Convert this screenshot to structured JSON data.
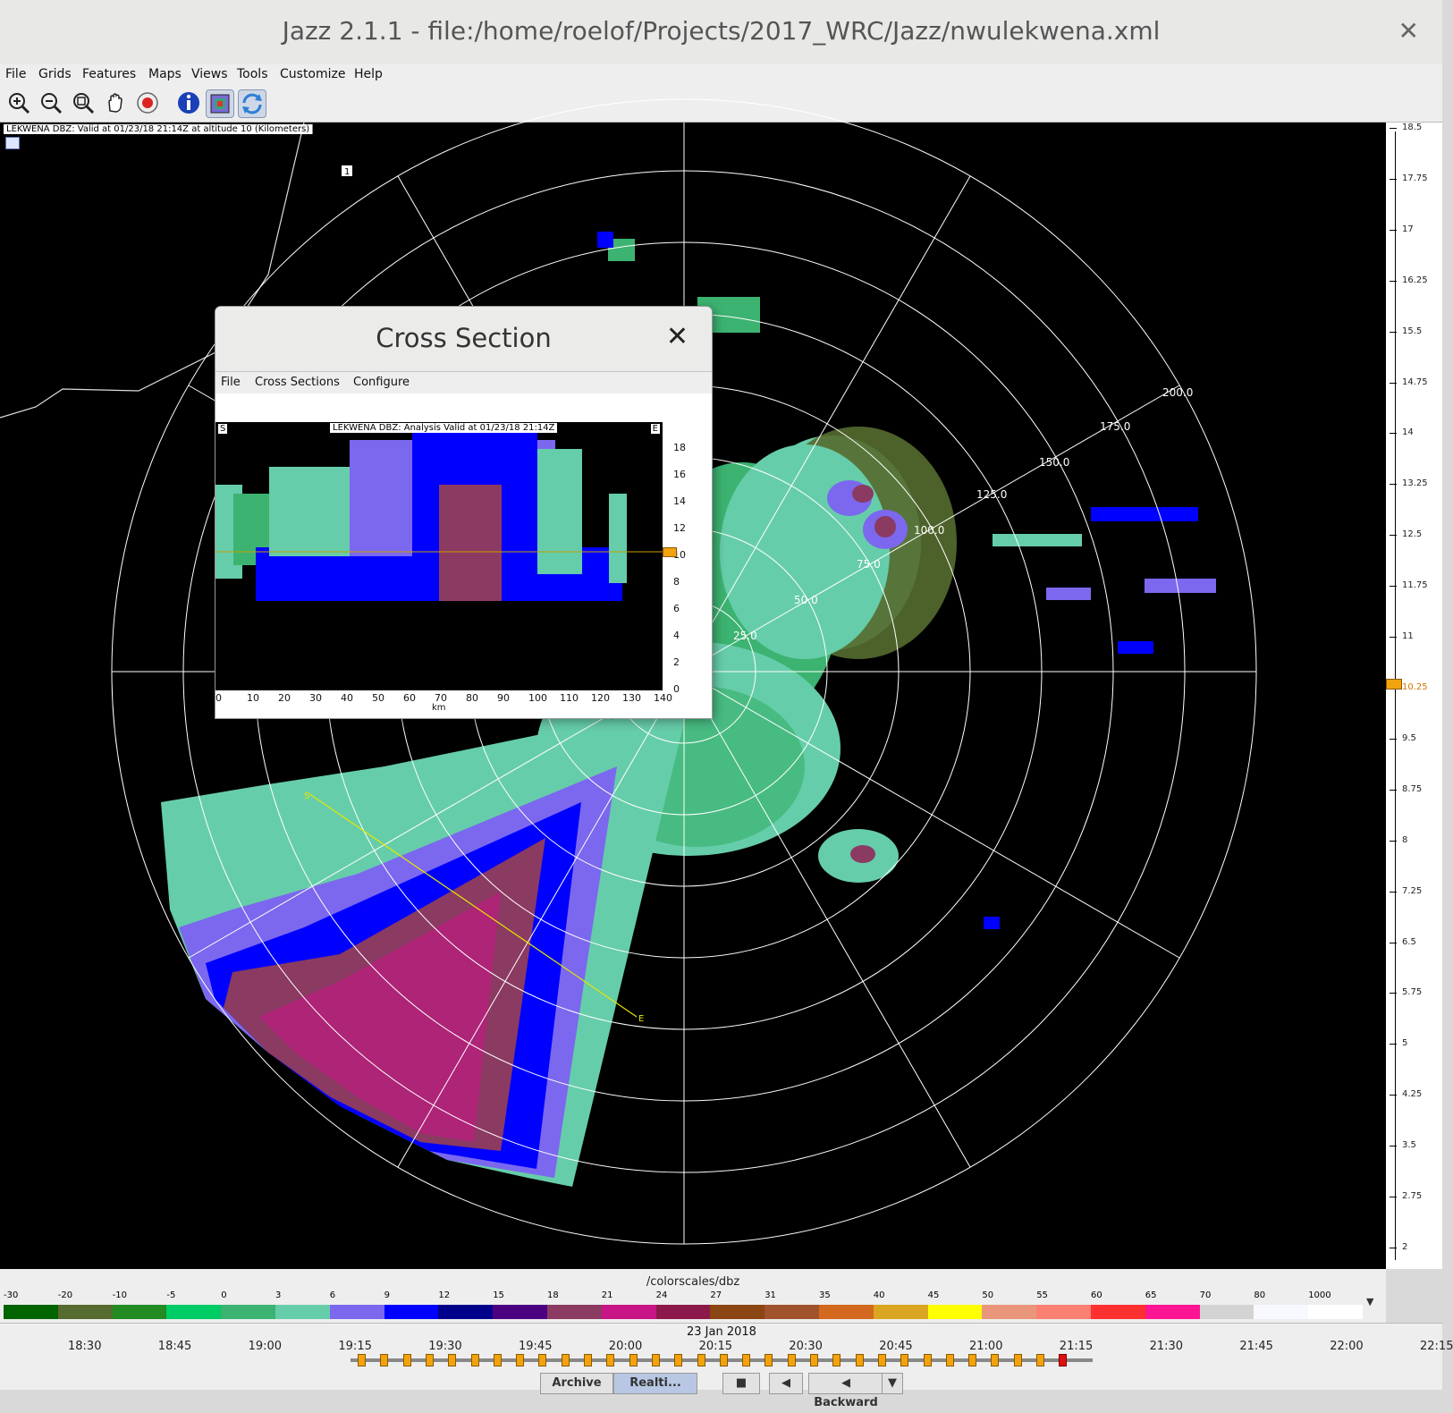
{
  "window": {
    "title": "Jazz 2.1.1 - file:/home/roelof/Projects/2017_WRC/Jazz/nwulekwena.xml",
    "close_glyph": "✕"
  },
  "menu": [
    "File",
    "Grids",
    "Features",
    "Maps",
    "Views",
    "Tools",
    "Customize",
    "Help"
  ],
  "toolbar": [
    "zoom-in-icon",
    "zoom-out-icon",
    "zoom-fit-icon",
    "pan-hand-icon",
    "record-icon",
    "info-icon",
    "layers-icon",
    "refresh-icon"
  ],
  "viewport": {
    "label": "LEKWENA DBZ: Valid at 01/23/18 21:14Z at altitude 10 (Kilometers)",
    "marker": "1",
    "range_labels": [
      "25.0",
      "50.0",
      "75.0",
      "100.0",
      "125.0",
      "150.0",
      "175.0",
      "200.0"
    ],
    "line_start": "S",
    "line_end": "E"
  },
  "altitude_scale": {
    "labels": [
      "18.5",
      "17.75",
      "17",
      "16.25",
      "15.5",
      "14.75",
      "14",
      "13.25",
      "12.5",
      "11.75",
      "11",
      "10.25",
      "9.5",
      "8.75",
      "8",
      "7.25",
      "6.5",
      "5.75",
      "5",
      "4.25",
      "3.5",
      "2.75",
      "2"
    ],
    "current": "10.25"
  },
  "colorbar": {
    "title": "/colorscales/dbz",
    "labels": [
      "-30",
      "-20",
      "-10",
      "-5",
      "0",
      "3",
      "6",
      "9",
      "12",
      "15",
      "18",
      "21",
      "24",
      "27",
      "31",
      "35",
      "40",
      "45",
      "50",
      "55",
      "60",
      "65",
      "70",
      "80",
      "1000"
    ],
    "colors": [
      "#006400",
      "#556b2f",
      "#228b22",
      "#00cc66",
      "#3cb371",
      "#66cdaa",
      "#7b68ee",
      "#0000ff",
      "#00008b",
      "#4b0082",
      "#8b3a62",
      "#c71585",
      "#8b1a4a",
      "#8b4513",
      "#a0522d",
      "#d2691e",
      "#daa520",
      "#ffff00",
      "#e9967a",
      "#fa8072",
      "#ff3030",
      "#ff1493",
      "#d3d3d3",
      "#f8f8ff",
      "#ffffff"
    ]
  },
  "timeline": {
    "date": "23 Jan 2018",
    "times": [
      "18:30",
      "18:45",
      "19:00",
      "19:15",
      "19:30",
      "19:45",
      "20:00",
      "20:15",
      "20:30",
      "20:45",
      "21:00",
      "21:15",
      "21:30",
      "21:45",
      "22:00",
      "22:15"
    ],
    "buttons": {
      "archive": "Archive",
      "realtime": "Realti...",
      "stop": "■",
      "step_back": "◀",
      "direction": "◀ Backward",
      "dropdown": "▼"
    }
  },
  "cross_section": {
    "title": "Cross Section",
    "close_glyph": "✕",
    "menu": [
      "File",
      "Cross Sections",
      "Configure"
    ],
    "plot_label": "LEKWENA DBZ: Analysis Valid at 01/23/18 21:14Z",
    "corner_left": "S",
    "corner_right": "E",
    "x_ticks": [
      "0",
      "10",
      "20",
      "30",
      "40",
      "50",
      "60",
      "70",
      "80",
      "90",
      "100",
      "110",
      "120",
      "130",
      "140"
    ],
    "x_unit": "km",
    "y_ticks": [
      "18",
      "16",
      "14",
      "12",
      "10",
      "8",
      "6",
      "4",
      "2",
      "0"
    ]
  }
}
